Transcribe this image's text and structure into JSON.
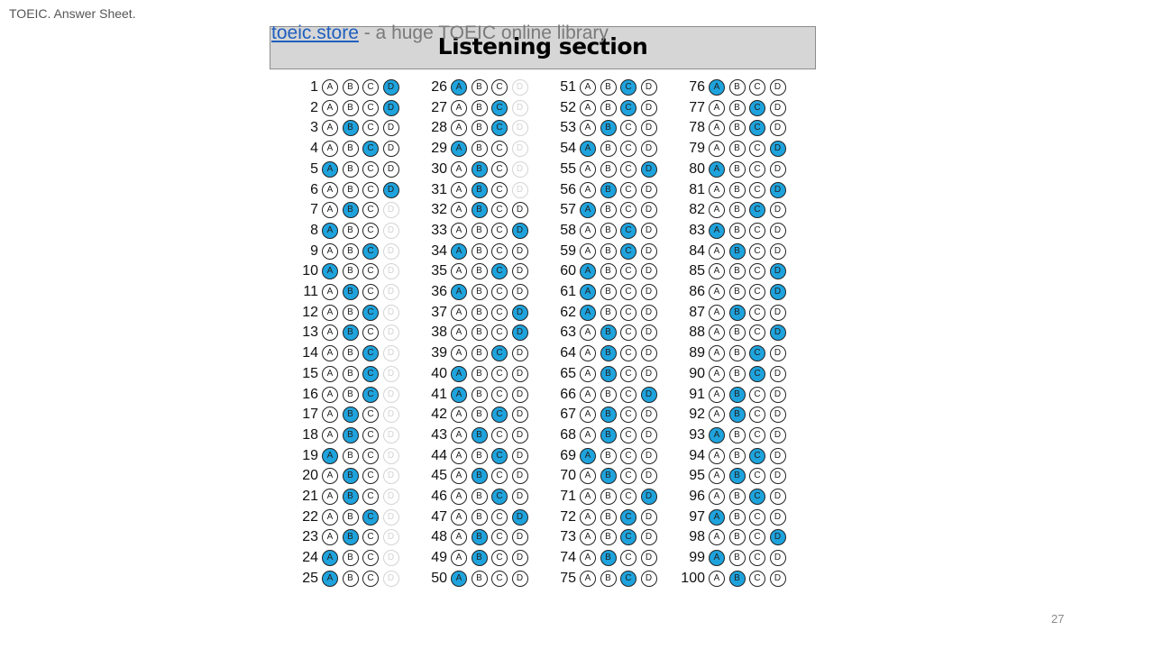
{
  "slide": {
    "title": "TOEIC. Answer Sheet.",
    "page_number": "27"
  },
  "header": {
    "link_text": "toeic.store",
    "link_rest": " - a huge TOEIC online library",
    "section_title": "Listening section"
  },
  "choices": [
    "A",
    "B",
    "C",
    "D"
  ],
  "colors": {
    "filled": "#1ea3dd",
    "header_bg": "#d6d6d6"
  },
  "answers": [
    "D",
    "D",
    "B",
    "C",
    "A",
    "D",
    "B",
    "A",
    "C",
    "A",
    "B",
    "C",
    "B",
    "C",
    "C",
    "C",
    "B",
    "B",
    "A",
    "B",
    "B",
    "C",
    "B",
    "A",
    "A",
    "A",
    "C",
    "C",
    "A",
    "B",
    "B",
    "B",
    "D",
    "A",
    "C",
    "A",
    "D",
    "D",
    "C",
    "A",
    "A",
    "C",
    "B",
    "C",
    "B",
    "C",
    "D",
    "B",
    "B",
    "A",
    "C",
    "C",
    "B",
    "A",
    "D",
    "B",
    "A",
    "C",
    "C",
    "A",
    "A",
    "A",
    "B",
    "B",
    "B",
    "D",
    "B",
    "B",
    "A",
    "B",
    "D",
    "C",
    "C",
    "B",
    "C",
    "A",
    "C",
    "C",
    "D",
    "A",
    "D",
    "C",
    "A",
    "B",
    "D",
    "D",
    "B",
    "D",
    "C",
    "C",
    "B",
    "B",
    "A",
    "C",
    "B",
    "C",
    "A",
    "D",
    "A",
    "B"
  ],
  "faint_d": [
    7,
    8,
    9,
    10,
    11,
    12,
    13,
    14,
    15,
    16,
    17,
    18,
    19,
    20,
    21,
    22,
    23,
    24,
    25,
    26,
    27,
    28,
    29,
    30,
    31
  ]
}
